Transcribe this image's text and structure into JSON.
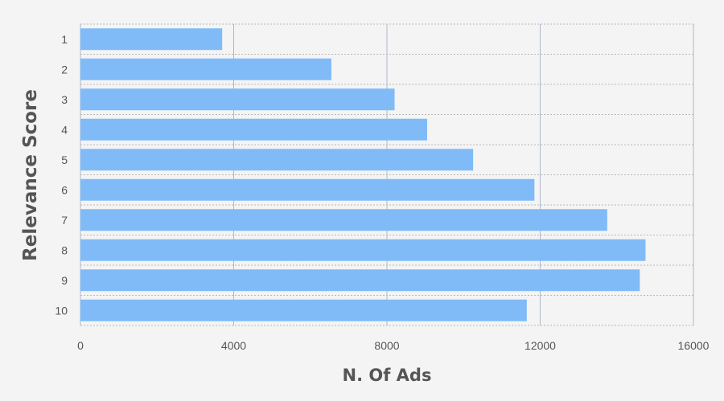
{
  "chart_data": {
    "type": "bar",
    "orientation": "horizontal",
    "categories": [
      "1",
      "2",
      "3",
      "4",
      "5",
      "6",
      "7",
      "8",
      "9",
      "10"
    ],
    "values": [
      3700,
      6550,
      8200,
      9050,
      10250,
      11850,
      13750,
      14750,
      14600,
      11650
    ],
    "xlabel": "N. Of Ads",
    "ylabel": "Relevance Score",
    "xlim": [
      0,
      16000
    ],
    "xticks": [
      0,
      4000,
      8000,
      12000,
      16000
    ],
    "grid": true,
    "colors": {
      "bar": "#80bbf8",
      "background": "#f4f4f4",
      "grid_vertical": "#aeb8cc",
      "grid_horizontal": "#b8b8b8",
      "text": "#555555"
    }
  }
}
